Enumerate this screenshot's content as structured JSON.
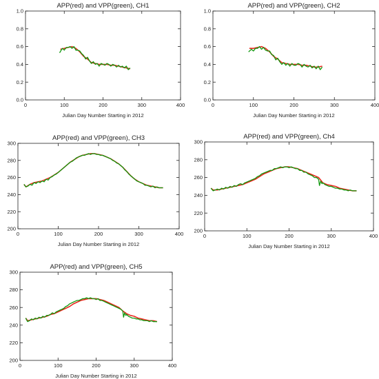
{
  "colors": {
    "app": "#e8281e",
    "vpp": "#11990f",
    "axis": "#222222"
  },
  "chart_data": [
    {
      "type": "line",
      "title": "APP(red) and VPP(green), CH1",
      "xlabel": "Julian Day Number Starting in 2012",
      "ylabel": "",
      "xlim": [
        0,
        400
      ],
      "ylim": [
        0.0,
        1.0
      ],
      "xticks": [
        0,
        100,
        200,
        300,
        400
      ],
      "xtick_labels": [
        "0",
        "100",
        "200",
        "300",
        "400"
      ],
      "yticks": [
        0.0,
        0.2,
        0.4,
        0.6,
        0.8,
        1.0
      ],
      "ytick_labels": [
        "0.0",
        "0.2",
        "0.4",
        "0.6",
        "0.8",
        "1.0"
      ],
      "series": [
        {
          "color": "#e8281e",
          "x": [
            90,
            100,
            110,
            120,
            130,
            140,
            150,
            160,
            170,
            180,
            190,
            200,
            210,
            220,
            230,
            240,
            250,
            260,
            270
          ],
          "values": [
            0.57,
            0.58,
            0.59,
            0.6,
            0.58,
            0.54,
            0.49,
            0.46,
            0.42,
            0.41,
            0.4,
            0.4,
            0.4,
            0.39,
            0.39,
            0.38,
            0.37,
            0.36,
            0.35
          ]
        },
        {
          "color": "#11990f",
          "x": [
            88,
            95,
            100,
            105,
            110,
            115,
            120,
            125,
            130,
            135,
            140,
            145,
            150,
            155,
            160,
            165,
            170,
            175,
            180,
            185,
            190,
            195,
            200,
            205,
            210,
            215,
            220,
            225,
            230,
            235,
            240,
            245,
            250,
            255,
            260,
            265,
            270
          ],
          "values": [
            0.53,
            0.58,
            0.56,
            0.59,
            0.59,
            0.6,
            0.58,
            0.6,
            0.56,
            0.56,
            0.55,
            0.52,
            0.5,
            0.46,
            0.48,
            0.44,
            0.41,
            0.43,
            0.4,
            0.41,
            0.38,
            0.41,
            0.4,
            0.39,
            0.41,
            0.4,
            0.38,
            0.4,
            0.39,
            0.37,
            0.39,
            0.37,
            0.38,
            0.36,
            0.38,
            0.34,
            0.36
          ]
        }
      ]
    },
    {
      "type": "line",
      "title": "APP(red) and VPP(green), CH2",
      "xlabel": "Julian Day Number Starting in 2012",
      "ylabel": "",
      "xlim": [
        0,
        400
      ],
      "ylim": [
        0.0,
        1.0
      ],
      "xticks": [
        0,
        100,
        200,
        300,
        400
      ],
      "xtick_labels": [
        "0",
        "100",
        "200",
        "300",
        "400"
      ],
      "yticks": [
        0.0,
        0.2,
        0.4,
        0.6,
        0.8,
        1.0
      ],
      "ytick_labels": [
        "0.0",
        "0.2",
        "0.4",
        "0.6",
        "0.8",
        "1.0"
      ],
      "series": [
        {
          "color": "#e8281e",
          "x": [
            90,
            100,
            110,
            120,
            130,
            140,
            150,
            160,
            170,
            180,
            190,
            200,
            210,
            220,
            230,
            240,
            250,
            260,
            270
          ],
          "values": [
            0.58,
            0.58,
            0.59,
            0.6,
            0.58,
            0.54,
            0.49,
            0.46,
            0.42,
            0.41,
            0.4,
            0.4,
            0.4,
            0.39,
            0.39,
            0.38,
            0.37,
            0.37,
            0.38
          ]
        },
        {
          "color": "#11990f",
          "x": [
            88,
            95,
            100,
            105,
            110,
            115,
            120,
            125,
            130,
            135,
            140,
            145,
            150,
            155,
            160,
            165,
            170,
            175,
            180,
            185,
            190,
            195,
            200,
            205,
            210,
            215,
            220,
            225,
            230,
            235,
            240,
            245,
            250,
            255,
            260,
            265,
            270
          ],
          "values": [
            0.54,
            0.57,
            0.55,
            0.58,
            0.58,
            0.6,
            0.57,
            0.59,
            0.56,
            0.55,
            0.55,
            0.51,
            0.5,
            0.45,
            0.47,
            0.43,
            0.4,
            0.42,
            0.39,
            0.41,
            0.38,
            0.41,
            0.39,
            0.39,
            0.41,
            0.4,
            0.37,
            0.4,
            0.38,
            0.37,
            0.39,
            0.36,
            0.38,
            0.35,
            0.38,
            0.34,
            0.37
          ]
        }
      ]
    },
    {
      "type": "line",
      "title": "APP(red) and VPP(green), CH3",
      "xlabel": "Julian Day Number Starting in 2012",
      "ylabel": "",
      "xlim": [
        0,
        400
      ],
      "ylim": [
        200,
        300
      ],
      "xticks": [
        0,
        100,
        200,
        300,
        400
      ],
      "xtick_labels": [
        "0",
        "100",
        "200",
        "300",
        "400"
      ],
      "yticks": [
        200,
        220,
        240,
        260,
        280,
        300
      ],
      "ytick_labels": [
        "200",
        "220",
        "240",
        "260",
        "280",
        "300"
      ],
      "series": [
        {
          "color": "#e8281e",
          "x": [
            15,
            20,
            30,
            40,
            50,
            60,
            70,
            80,
            90,
            100,
            110,
            120,
            130,
            140,
            150,
            160,
            170,
            180,
            190,
            200,
            210,
            220,
            230,
            240,
            250,
            260,
            270,
            280,
            290,
            300,
            310,
            320,
            330,
            340,
            350,
            360
          ],
          "values": [
            252,
            249,
            252,
            254,
            255,
            256,
            258,
            260,
            263,
            266,
            270,
            274,
            278,
            281,
            284,
            286,
            287,
            288,
            288,
            287,
            286,
            284,
            282,
            279,
            276,
            272,
            267,
            262,
            258,
            255,
            253,
            251,
            250,
            249,
            248,
            248
          ]
        },
        {
          "color": "#11990f",
          "x": [
            15,
            20,
            25,
            30,
            35,
            40,
            45,
            50,
            55,
            60,
            65,
            70,
            75,
            80,
            85,
            90,
            95,
            100,
            105,
            110,
            115,
            120,
            125,
            130,
            135,
            140,
            145,
            150,
            155,
            160,
            165,
            170,
            175,
            180,
            185,
            190,
            195,
            200,
            205,
            210,
            215,
            220,
            225,
            230,
            235,
            240,
            245,
            250,
            255,
            260,
            265,
            270,
            275,
            280,
            285,
            290,
            295,
            300,
            305,
            310,
            315,
            320,
            325,
            330,
            335,
            340,
            345,
            350,
            355,
            360
          ],
          "values": [
            252,
            249,
            250,
            252,
            251,
            254,
            253,
            255,
            254,
            256,
            255,
            258,
            257,
            260,
            261,
            263,
            264,
            266,
            268,
            270,
            272,
            274,
            276,
            278,
            279,
            281,
            283,
            284,
            285,
            286,
            286,
            287,
            288,
            287,
            288,
            288,
            287,
            287,
            286,
            286,
            285,
            284,
            283,
            282,
            280,
            279,
            277,
            276,
            274,
            272,
            269,
            267,
            264,
            262,
            260,
            258,
            256,
            255,
            254,
            253,
            251,
            251,
            250,
            249,
            250,
            248,
            249,
            248,
            248,
            248
          ]
        }
      ]
    },
    {
      "type": "line",
      "title": "APP(red) and VPP(green), Ch4",
      "xlabel": "Julian Day Number Starting in 2012",
      "ylabel": "",
      "xlim": [
        0,
        400
      ],
      "ylim": [
        200,
        300
      ],
      "xticks": [
        0,
        100,
        200,
        300,
        400
      ],
      "xtick_labels": [
        "0",
        "100",
        "200",
        "300",
        "400"
      ],
      "yticks": [
        200,
        220,
        240,
        260,
        280,
        300
      ],
      "ytick_labels": [
        "200",
        "220",
        "240",
        "260",
        "280",
        "300"
      ],
      "series": [
        {
          "color": "#e8281e",
          "x": [
            15,
            20,
            30,
            40,
            50,
            60,
            70,
            80,
            90,
            100,
            110,
            120,
            130,
            140,
            150,
            160,
            170,
            180,
            190,
            200,
            210,
            220,
            230,
            240,
            250,
            260,
            270,
            280,
            290,
            300,
            310,
            320,
            330,
            340,
            350,
            360
          ],
          "values": [
            248,
            246,
            246,
            247,
            248,
            249,
            250,
            251,
            252,
            254,
            256,
            258,
            261,
            264,
            266,
            268,
            270,
            271,
            272,
            272,
            271,
            270,
            268,
            266,
            264,
            262,
            260,
            254,
            252,
            251,
            250,
            248,
            247,
            246,
            245,
            245
          ]
        },
        {
          "color": "#11990f",
          "x": [
            15,
            20,
            25,
            30,
            35,
            40,
            45,
            50,
            55,
            60,
            65,
            70,
            75,
            80,
            85,
            90,
            95,
            100,
            105,
            110,
            115,
            120,
            125,
            130,
            135,
            140,
            145,
            150,
            155,
            160,
            165,
            170,
            175,
            180,
            185,
            190,
            195,
            200,
            205,
            210,
            215,
            220,
            225,
            230,
            235,
            240,
            245,
            250,
            255,
            260,
            265,
            270,
            272,
            275,
            278,
            280,
            285,
            290,
            295,
            300,
            305,
            310,
            315,
            320,
            325,
            330,
            335,
            340,
            345,
            350,
            355,
            360
          ],
          "values": [
            248,
            245,
            246,
            247,
            246,
            248,
            247,
            249,
            248,
            250,
            249,
            251,
            250,
            252,
            253,
            252,
            254,
            255,
            256,
            257,
            258,
            259,
            261,
            262,
            264,
            265,
            266,
            267,
            268,
            268,
            270,
            270,
            271,
            272,
            271,
            272,
            272,
            271,
            272,
            271,
            270,
            270,
            268,
            268,
            266,
            266,
            264,
            263,
            262,
            260,
            260,
            258,
            251,
            256,
            253,
            254,
            252,
            251,
            250,
            250,
            249,
            248,
            248,
            247,
            247,
            246,
            246,
            245,
            246,
            245,
            245,
            245
          ]
        }
      ]
    },
    {
      "type": "line",
      "title": "APP(red) and VPP(green), CH5",
      "xlabel": "Julian Day Number Starting in 2012",
      "ylabel": "",
      "xlim": [
        0,
        400
      ],
      "ylim": [
        200,
        300
      ],
      "xticks": [
        0,
        100,
        200,
        300,
        400
      ],
      "xtick_labels": [
        "0",
        "100",
        "200",
        "300",
        "400"
      ],
      "yticks": [
        200,
        220,
        240,
        260,
        280,
        300
      ],
      "ytick_labels": [
        "200",
        "220",
        "240",
        "260",
        "280",
        "300"
      ],
      "series": [
        {
          "color": "#e8281e",
          "x": [
            15,
            20,
            30,
            40,
            50,
            60,
            70,
            80,
            90,
            100,
            110,
            120,
            130,
            140,
            150,
            160,
            170,
            180,
            190,
            200,
            210,
            220,
            230,
            240,
            250,
            260,
            270,
            280,
            290,
            300,
            310,
            320,
            330,
            340,
            350,
            360
          ],
          "values": [
            248,
            245,
            246,
            247,
            248,
            249,
            250,
            252,
            253,
            255,
            257,
            259,
            261,
            264,
            266,
            268,
            269,
            270,
            270,
            270,
            269,
            268,
            266,
            264,
            262,
            260,
            256,
            253,
            251,
            250,
            248,
            247,
            246,
            245,
            245,
            244
          ]
        },
        {
          "color": "#11990f",
          "x": [
            15,
            20,
            25,
            30,
            35,
            40,
            45,
            50,
            55,
            60,
            65,
            70,
            75,
            80,
            85,
            90,
            95,
            100,
            105,
            110,
            115,
            120,
            125,
            130,
            135,
            140,
            145,
            150,
            155,
            160,
            165,
            170,
            175,
            180,
            185,
            190,
            195,
            200,
            205,
            210,
            215,
            220,
            225,
            230,
            235,
            240,
            245,
            250,
            255,
            260,
            265,
            270,
            272,
            275,
            278,
            280,
            285,
            290,
            295,
            300,
            305,
            310,
            315,
            320,
            325,
            330,
            335,
            340,
            345,
            350,
            355,
            360
          ],
          "values": [
            248,
            244,
            245,
            247,
            246,
            248,
            247,
            249,
            248,
            250,
            249,
            251,
            251,
            252,
            254,
            253,
            255,
            256,
            257,
            258,
            259,
            261,
            262,
            264,
            265,
            266,
            267,
            268,
            268,
            269,
            270,
            270,
            271,
            270,
            271,
            270,
            270,
            269,
            270,
            268,
            268,
            267,
            266,
            265,
            264,
            263,
            262,
            261,
            260,
            259,
            258,
            256,
            249,
            254,
            251,
            252,
            250,
            249,
            248,
            248,
            247,
            247,
            246,
            246,
            245,
            245,
            245,
            244,
            245,
            244,
            244,
            244
          ]
        }
      ]
    }
  ]
}
